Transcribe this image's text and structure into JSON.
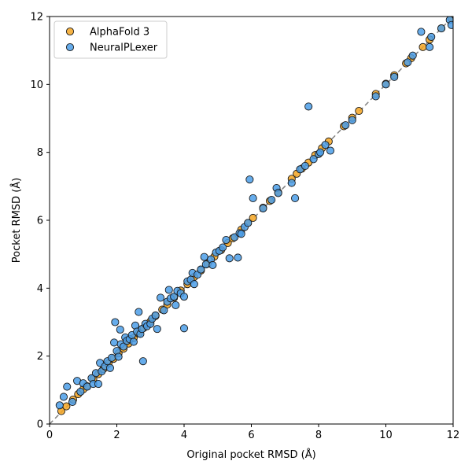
{
  "chart_data": {
    "type": "scatter",
    "title": "",
    "xlabel": "Original pocket RMSD (Å)",
    "ylabel": "Pocket RMSD (Å)",
    "xlim": [
      0,
      12
    ],
    "ylim": [
      0,
      12
    ],
    "xticks": [
      "0",
      "2",
      "4",
      "6",
      "8",
      "10",
      "12"
    ],
    "yticks": [
      "0",
      "2",
      "4",
      "6",
      "8",
      "10",
      "12"
    ],
    "grid": false,
    "legend_position": "top-left",
    "reference_line": "y = x",
    "series": [
      {
        "name": "AlphaFold 3",
        "color": "#f5a623",
        "points": [
          [
            0.35,
            0.38
          ],
          [
            0.5,
            0.52
          ],
          [
            0.7,
            0.72
          ],
          [
            0.85,
            0.88
          ],
          [
            1.0,
            1.02
          ],
          [
            1.1,
            1.12
          ],
          [
            1.3,
            1.33
          ],
          [
            1.45,
            1.47
          ],
          [
            1.6,
            1.62
          ],
          [
            1.75,
            1.78
          ],
          [
            1.9,
            1.92
          ],
          [
            2.05,
            2.08
          ],
          [
            2.2,
            2.22
          ],
          [
            2.35,
            2.37
          ],
          [
            2.5,
            2.53
          ],
          [
            2.65,
            2.67
          ],
          [
            2.8,
            2.83
          ],
          [
            3.0,
            3.02
          ],
          [
            3.15,
            3.18
          ],
          [
            3.35,
            3.37
          ],
          [
            3.5,
            3.52
          ],
          [
            3.7,
            3.72
          ],
          [
            3.9,
            3.93
          ],
          [
            4.1,
            4.12
          ],
          [
            4.3,
            4.33
          ],
          [
            4.5,
            4.52
          ],
          [
            4.7,
            4.72
          ],
          [
            4.9,
            4.93
          ],
          [
            5.1,
            5.12
          ],
          [
            5.3,
            5.33
          ],
          [
            5.45,
            5.47
          ],
          [
            5.7,
            5.72
          ],
          [
            5.9,
            5.92
          ],
          [
            6.05,
            6.07
          ],
          [
            6.35,
            6.37
          ],
          [
            6.55,
            6.57
          ],
          [
            6.8,
            6.82
          ],
          [
            7.2,
            7.22
          ],
          [
            7.35,
            7.37
          ],
          [
            7.5,
            7.52
          ],
          [
            7.7,
            7.7
          ],
          [
            7.9,
            7.92
          ],
          [
            8.1,
            8.12
          ],
          [
            8.3,
            8.32
          ],
          [
            8.75,
            8.77
          ],
          [
            9.0,
            9.02
          ],
          [
            9.2,
            9.22
          ],
          [
            9.7,
            9.72
          ],
          [
            10.0,
            10.02
          ],
          [
            10.25,
            10.27
          ],
          [
            10.6,
            10.62
          ],
          [
            10.75,
            10.77
          ],
          [
            11.1,
            11.1
          ],
          [
            11.3,
            11.32
          ],
          [
            11.65,
            11.65
          ],
          [
            11.95,
            11.95
          ]
        ]
      },
      {
        "name": "NeuralPLexer",
        "color": "#4b9de8",
        "points": [
          [
            0.3,
            0.55
          ],
          [
            0.42,
            0.8
          ],
          [
            0.52,
            1.1
          ],
          [
            0.68,
            0.65
          ],
          [
            0.82,
            1.27
          ],
          [
            0.92,
            0.95
          ],
          [
            1.0,
            1.2
          ],
          [
            1.12,
            1.1
          ],
          [
            1.25,
            1.35
          ],
          [
            1.3,
            1.18
          ],
          [
            1.38,
            1.5
          ],
          [
            1.45,
            1.18
          ],
          [
            1.5,
            1.8
          ],
          [
            1.55,
            1.55
          ],
          [
            1.65,
            1.7
          ],
          [
            1.72,
            1.85
          ],
          [
            1.8,
            1.65
          ],
          [
            1.85,
            1.95
          ],
          [
            1.92,
            2.4
          ],
          [
            1.95,
            3.0
          ],
          [
            2.0,
            2.15
          ],
          [
            2.05,
            1.98
          ],
          [
            2.1,
            2.78
          ],
          [
            2.12,
            2.35
          ],
          [
            2.2,
            2.28
          ],
          [
            2.25,
            2.55
          ],
          [
            2.3,
            2.45
          ],
          [
            2.38,
            2.5
          ],
          [
            2.45,
            2.62
          ],
          [
            2.5,
            2.42
          ],
          [
            2.55,
            2.9
          ],
          [
            2.6,
            2.72
          ],
          [
            2.65,
            3.3
          ],
          [
            2.7,
            2.65
          ],
          [
            2.75,
            2.8
          ],
          [
            2.78,
            1.85
          ],
          [
            2.85,
            2.95
          ],
          [
            2.9,
            2.88
          ],
          [
            3.0,
            2.95
          ],
          [
            3.05,
            3.1
          ],
          [
            3.15,
            3.2
          ],
          [
            3.2,
            2.8
          ],
          [
            3.3,
            3.72
          ],
          [
            3.4,
            3.35
          ],
          [
            3.5,
            3.6
          ],
          [
            3.55,
            3.95
          ],
          [
            3.6,
            3.7
          ],
          [
            3.7,
            3.75
          ],
          [
            3.75,
            3.5
          ],
          [
            3.8,
            3.92
          ],
          [
            3.9,
            3.85
          ],
          [
            4.0,
            3.75
          ],
          [
            4.0,
            2.82
          ],
          [
            4.1,
            4.2
          ],
          [
            4.2,
            4.25
          ],
          [
            4.25,
            4.45
          ],
          [
            4.3,
            4.12
          ],
          [
            4.4,
            4.4
          ],
          [
            4.5,
            4.55
          ],
          [
            4.6,
            4.92
          ],
          [
            4.65,
            4.7
          ],
          [
            4.8,
            4.85
          ],
          [
            4.85,
            4.68
          ],
          [
            4.95,
            5.05
          ],
          [
            5.05,
            5.1
          ],
          [
            5.15,
            5.2
          ],
          [
            5.25,
            5.42
          ],
          [
            5.35,
            4.88
          ],
          [
            5.5,
            5.5
          ],
          [
            5.6,
            4.9
          ],
          [
            5.65,
            5.62
          ],
          [
            5.7,
            5.6
          ],
          [
            5.8,
            5.8
          ],
          [
            5.9,
            5.92
          ],
          [
            5.95,
            7.2
          ],
          [
            6.05,
            6.65
          ],
          [
            6.35,
            6.35
          ],
          [
            6.6,
            6.6
          ],
          [
            6.75,
            6.95
          ],
          [
            6.8,
            6.8
          ],
          [
            7.2,
            7.1
          ],
          [
            7.3,
            6.65
          ],
          [
            7.45,
            7.5
          ],
          [
            7.6,
            7.6
          ],
          [
            7.7,
            9.35
          ],
          [
            7.85,
            7.8
          ],
          [
            8.0,
            7.95
          ],
          [
            8.05,
            8.0
          ],
          [
            8.2,
            8.22
          ],
          [
            8.35,
            8.05
          ],
          [
            8.8,
            8.8
          ],
          [
            9.0,
            8.95
          ],
          [
            9.7,
            9.65
          ],
          [
            10.0,
            10.0
          ],
          [
            10.25,
            10.22
          ],
          [
            10.65,
            10.65
          ],
          [
            10.8,
            10.85
          ],
          [
            11.05,
            11.55
          ],
          [
            11.3,
            11.1
          ],
          [
            11.35,
            11.4
          ],
          [
            11.65,
            11.65
          ],
          [
            11.9,
            11.9
          ],
          [
            11.95,
            11.75
          ]
        ]
      }
    ]
  }
}
